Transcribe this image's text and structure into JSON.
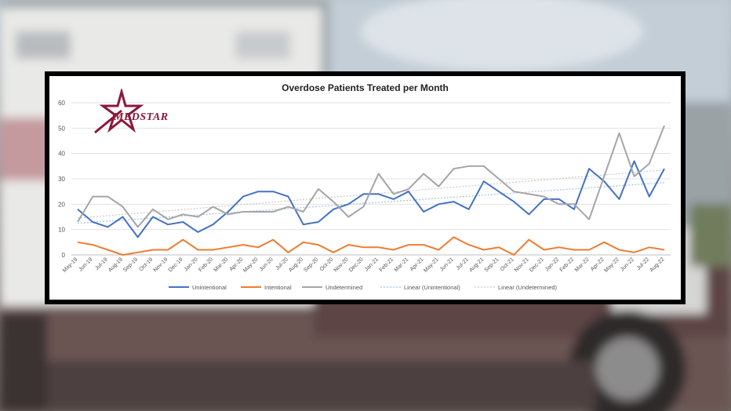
{
  "chart_data": {
    "type": "line",
    "title": "Overdose Patients Treated per Month",
    "ylim": [
      0,
      60
    ],
    "yticks": [
      0,
      10,
      20,
      30,
      40,
      50,
      60
    ],
    "grid": true,
    "legend_position": "bottom",
    "categories": [
      "May-19",
      "Jun-19",
      "Jul-19",
      "Aug-19",
      "Sep-19",
      "Oct-19",
      "Nov-19",
      "Dec-19",
      "Jan-20",
      "Feb-20",
      "Mar-20",
      "Apr-20",
      "May-20",
      "Jun-20",
      "Jul-20",
      "Aug-20",
      "Sep-20",
      "Oct-20",
      "Nov-20",
      "Dec-20",
      "Jan-21",
      "Feb-21",
      "Mar-21",
      "Apr-21",
      "May-21",
      "Jun-21",
      "Jul-21",
      "Aug-21",
      "Sep-21",
      "Oct-21",
      "Nov-21",
      "Dec-21",
      "Jan-22",
      "Feb-22",
      "Mar-22",
      "Apr-22",
      "May-22",
      "Jun-22",
      "Jul-22",
      "Aug-22"
    ],
    "series": [
      {
        "name": "Unintentional",
        "color": "#4472c4",
        "values": [
          18,
          13,
          11,
          15,
          7,
          15,
          12,
          13,
          9,
          12,
          17,
          23,
          25,
          25,
          23,
          12,
          13,
          18,
          20,
          24,
          24,
          22,
          25,
          17,
          20,
          21,
          18,
          29,
          25,
          21,
          16,
          22,
          22,
          18,
          34,
          29,
          22,
          37,
          23,
          34
        ]
      },
      {
        "name": "Intentional",
        "color": "#ed7d31",
        "values": [
          5,
          4,
          2,
          0,
          1,
          2,
          2,
          6,
          2,
          2,
          3,
          4,
          3,
          6,
          1,
          5,
          4,
          1,
          4,
          3,
          3,
          2,
          4,
          4,
          2,
          7,
          4,
          2,
          3,
          0,
          6,
          2,
          3,
          2,
          2,
          5,
          2,
          1,
          3,
          2
        ]
      },
      {
        "name": "Undetermined",
        "color": "#a5a5a5",
        "values": [
          13,
          23,
          23,
          19,
          11,
          18,
          14,
          16,
          15,
          19,
          16,
          17,
          17,
          17,
          19,
          17,
          26,
          21,
          15,
          19,
          32,
          24,
          26,
          32,
          27,
          34,
          35,
          35,
          30,
          25,
          24,
          23,
          20,
          20,
          14,
          31,
          48,
          31,
          36,
          51
        ]
      }
    ],
    "trendlines": [
      {
        "name": "Linear (Unintentional)",
        "color": "#9dc3e6",
        "start": 12.5,
        "end": 28.5
      },
      {
        "name": "Linear (Undetermined)",
        "color": "#c9c9c9",
        "start": 14.5,
        "end": 33.5
      }
    ],
    "logo_text": "MEDSTAR"
  }
}
